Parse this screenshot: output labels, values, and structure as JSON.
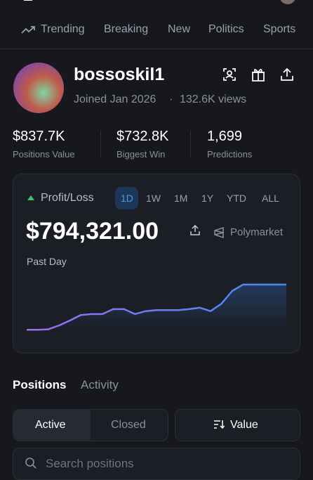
{
  "nav": {
    "tabs": [
      "Trending",
      "Breaking",
      "New",
      "Politics",
      "Sports"
    ]
  },
  "profile": {
    "username": "bossoskil1",
    "joined": "Joined Jan 2026",
    "separator": "·",
    "views": "132.6K views"
  },
  "stats": [
    {
      "value": "$837.7K",
      "label": "Positions Value"
    },
    {
      "value": "$732.8K",
      "label": "Biggest Win"
    },
    {
      "value": "1,699",
      "label": "Predictions"
    }
  ],
  "pnl": {
    "title": "Profit/Loss",
    "timeframes": [
      "1D",
      "1W",
      "1M",
      "1Y",
      "YTD",
      "ALL"
    ],
    "amount": "$794,321.00",
    "brand": "Polymarket",
    "period": "Past Day"
  },
  "chart_data": {
    "type": "line",
    "values": [
      1,
      1,
      2,
      10,
      20,
      31,
      33,
      33,
      43,
      43,
      33,
      39,
      41,
      41,
      41,
      43,
      46,
      39,
      54,
      80,
      93,
      93,
      93,
      93,
      93
    ],
    "ylim": [
      0,
      100
    ]
  },
  "tabs": [
    "Positions",
    "Activity"
  ],
  "filters": {
    "active": "Active",
    "closed": "Closed",
    "sort": "Value"
  },
  "search": {
    "placeholder": "Search positions"
  }
}
